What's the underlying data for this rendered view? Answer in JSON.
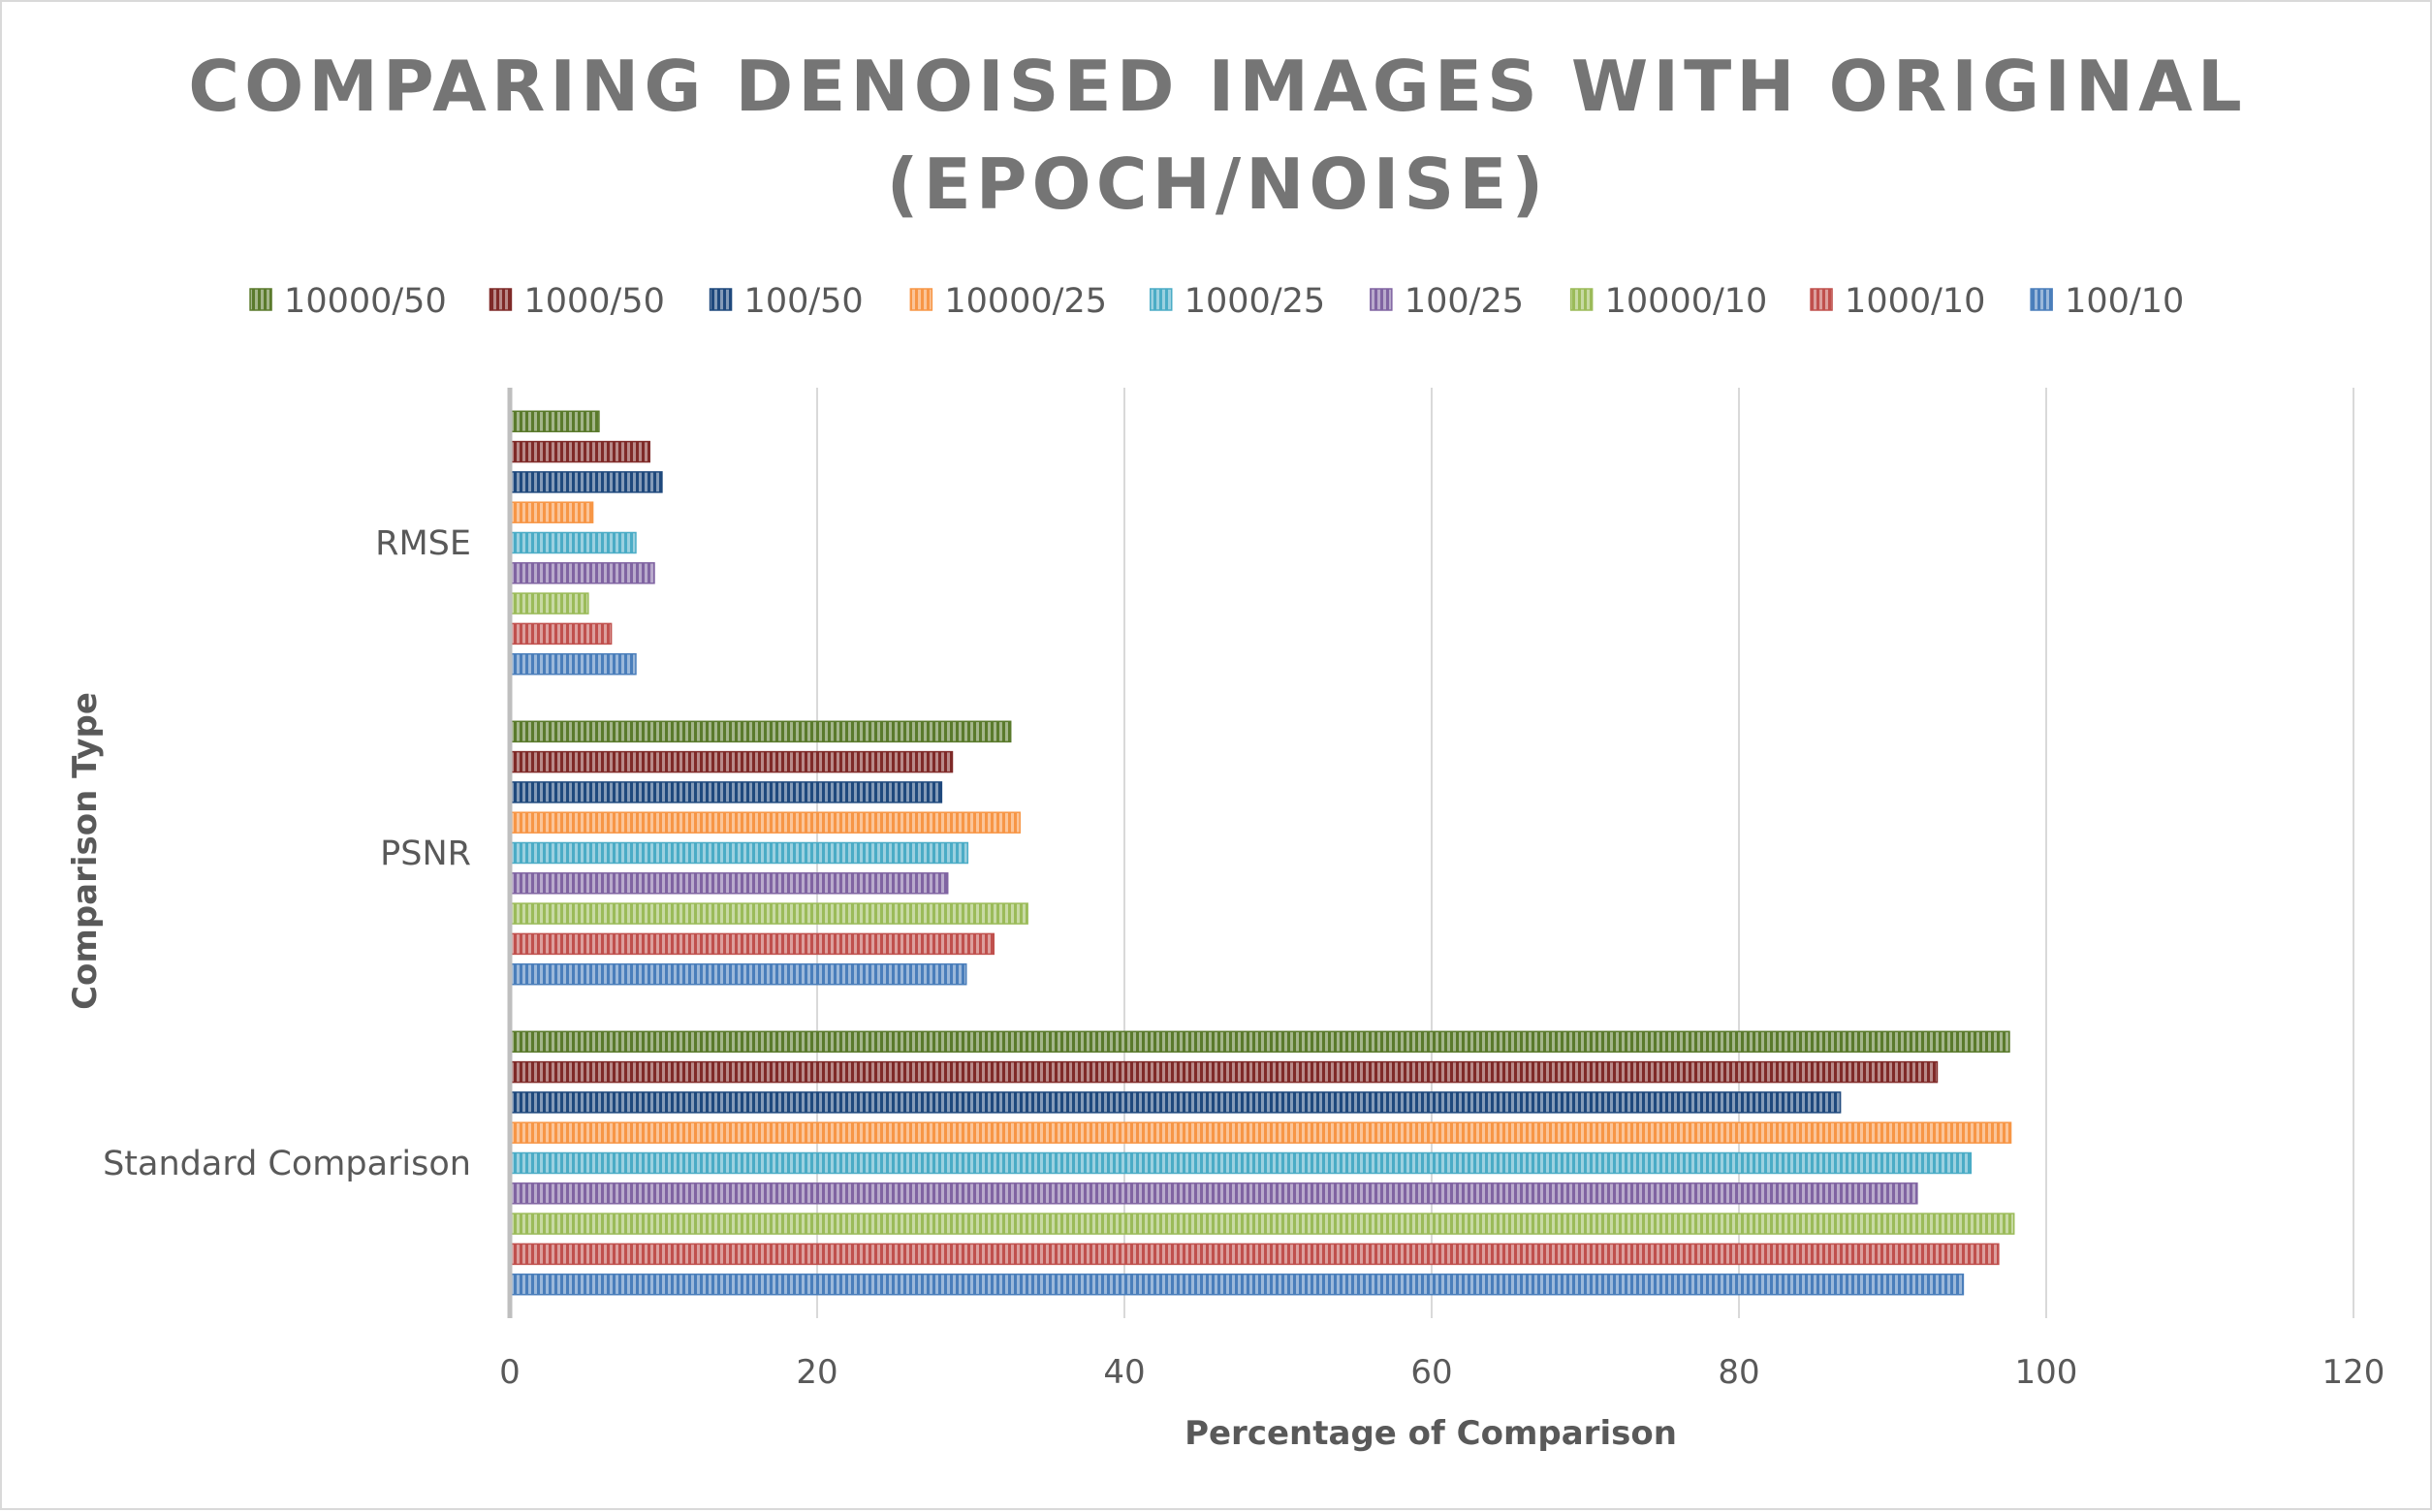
{
  "chart_data": {
    "type": "bar",
    "orientation": "horizontal",
    "title_line1": "COMPARING DENOISED IMAGES WITH ORIGINAL",
    "title_line2": "(EPOCH/NOISE)",
    "xlabel": "Percentage of Comparison",
    "ylabel": "Comparison Type",
    "xlim": [
      0,
      120
    ],
    "x_ticks": [
      "0",
      "20",
      "40",
      "60",
      "80",
      "100",
      "120"
    ],
    "grid": "vertical",
    "legend_position": "top",
    "categories": [
      "Standard Comparison",
      "PSNR",
      "RMSE"
    ],
    "series": [
      {
        "name": "100/10",
        "color": "#4a7ebb",
        "values": [
          94.6,
          29.7,
          8.2
        ]
      },
      {
        "name": "1000/10",
        "color": "#c0504d",
        "values": [
          96.9,
          31.5,
          6.6
        ]
      },
      {
        "name": "10000/10",
        "color": "#9bbb59",
        "values": [
          97.9,
          33.7,
          5.1
        ]
      },
      {
        "name": "100/25",
        "color": "#8064a2",
        "values": [
          91.6,
          28.5,
          9.4
        ]
      },
      {
        "name": "1000/25",
        "color": "#4bacc6",
        "values": [
          95.1,
          29.8,
          8.2
        ]
      },
      {
        "name": "10000/25",
        "color": "#f79646",
        "values": [
          97.7,
          33.2,
          5.4
        ]
      },
      {
        "name": "100/50",
        "color": "#1f497d",
        "values": [
          86.6,
          28.1,
          9.9
        ]
      },
      {
        "name": "1000/50",
        "color": "#7f2a28",
        "values": [
          92.9,
          28.8,
          9.1
        ]
      },
      {
        "name": "10000/50",
        "color": "#5a7a2c",
        "values": [
          97.6,
          32.6,
          5.8
        ]
      }
    ]
  }
}
